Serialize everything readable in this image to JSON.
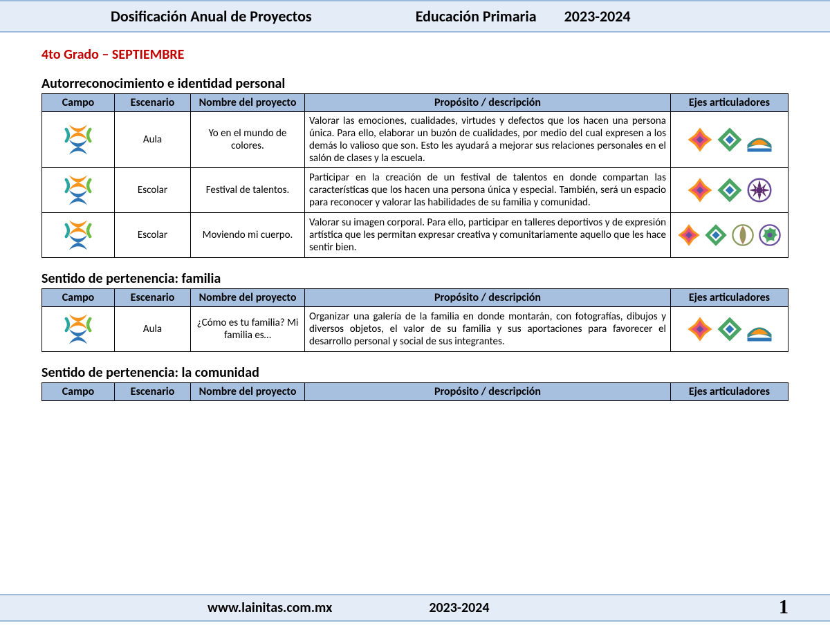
{
  "header": {
    "left": "Dosificación Anual de Proyectos",
    "mid": "Educación Primaria",
    "right": "2023-2024"
  },
  "grade_heading": "4to Grado – SEPTIEMBRE",
  "columns": {
    "campo": "Campo",
    "escenario": "Escenario",
    "nombre": "Nombre del proyecto",
    "proposito": "Propósito / descripción",
    "ejes": "Ejes articuladores"
  },
  "sections": [
    {
      "title": "Autorreconocimiento e identidad personal",
      "rows": [
        {
          "escenario": "Aula",
          "nombre": "Yo en el mundo de colores.",
          "proposito": "Valorar las emociones, cualidades, virtudes y defectos que los hacen una persona única. Para ello, elaborar un buzón de cualidades, por medio del cual expresen a los demás lo valioso que son. Esto les ayudará a mejorar sus relaciones personales en el salón de clases y la escuela.",
          "ejes_variant": "a"
        },
        {
          "escenario": "Escolar",
          "nombre": "Festival de talentos.",
          "proposito": "Participar en la creación de un festival de talentos en donde compartan las características que los hacen una persona única y especial. También, será un espacio para reconocer y valorar las habilidades de su familia y comunidad.",
          "ejes_variant": "b"
        },
        {
          "escenario": "Escolar",
          "nombre": "Moviendo mi cuerpo.",
          "proposito": "Valorar su imagen corporal. Para ello, participar en talleres deportivos y de expresión artística que les permitan expresar creativa y comunitariamente aquello que les hace sentir bien.",
          "ejes_variant": "c"
        }
      ]
    },
    {
      "title": "Sentido de pertenencia: familia",
      "rows": [
        {
          "escenario": "Aula",
          "nombre": "¿Cómo es tu familia? Mi familia es…",
          "proposito": "Organizar una galería de la familia en donde montarán, con fotografías, dibujos y diversos objetos, el valor de su familia y sus aportaciones para favorecer el desarrollo personal y social de sus integrantes.",
          "ejes_variant": "a"
        }
      ]
    },
    {
      "title": "Sentido de pertenencia: la comunidad",
      "rows": []
    }
  ],
  "footer": {
    "site": "www.lainitas.com.mx",
    "year": "2023-2024",
    "page": "1"
  },
  "colors": {
    "header_bg": "#e3ecf7",
    "header_border": "#9bb9d9",
    "th_bg": "#a7c0e0",
    "grade_color": "#c00000",
    "campo_orange": "#f7941d",
    "campo_teal": "#2aa6a0",
    "campo_green": "#6cbd45",
    "campo_blue": "#2e75b6",
    "ej1a": "#e94e77",
    "ej1b": "#6b4e9b",
    "ej1c": "#f7941d",
    "ej2a": "#4aa564",
    "ej2b": "#2e75b6",
    "ej3a": "#3b8686",
    "ej3b": "#f7941d",
    "ej3c": "#2e75b6",
    "ej4a": "#6b4e9b",
    "ej4b": "#5b2c6f",
    "ej5a": "#8a9a5b",
    "ej5b": "#b58863"
  }
}
